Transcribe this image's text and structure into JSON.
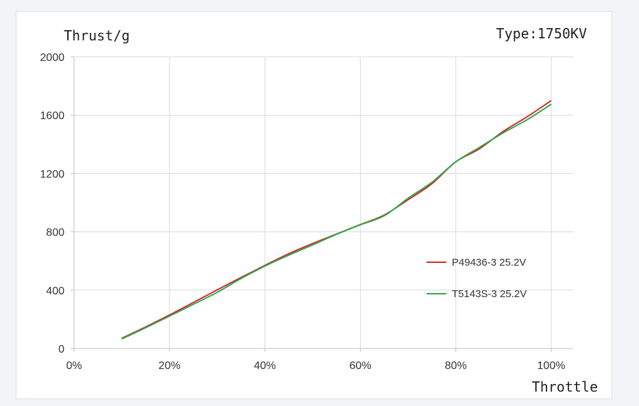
{
  "chart_data": {
    "type": "line",
    "ylabel": "Thrust/g",
    "xlabel": "Throttle",
    "annotation": "Type:1750KV",
    "xlim": [
      0,
      100
    ],
    "ylim": [
      0,
      2000
    ],
    "x_ticks": [
      "0%",
      "20%",
      "40%",
      "60%",
      "80%",
      "100%"
    ],
    "y_ticks": [
      "0",
      "400",
      "800",
      "1200",
      "1600",
      "2000"
    ],
    "grid": true,
    "legend_position": "right",
    "series": [
      {
        "name": "P49436-3 25.2V",
        "color": "#d6282b",
        "x": [
          10,
          15,
          20,
          25,
          30,
          35,
          40,
          45,
          50,
          55,
          60,
          65,
          70,
          75,
          80,
          85,
          90,
          95,
          100
        ],
        "values": [
          70,
          148,
          230,
          315,
          402,
          487,
          570,
          650,
          720,
          785,
          850,
          915,
          1020,
          1130,
          1280,
          1370,
          1490,
          1590,
          1700
        ]
      },
      {
        "name": "T5143S-3 25.2V",
        "color": "#2ea84f",
        "x": [
          10,
          15,
          20,
          25,
          30,
          35,
          40,
          45,
          50,
          55,
          60,
          65,
          70,
          75,
          80,
          85,
          90,
          95,
          100
        ],
        "values": [
          65,
          142,
          222,
          303,
          385,
          480,
          565,
          640,
          710,
          783,
          848,
          910,
          1030,
          1140,
          1280,
          1380,
          1480,
          1570,
          1675
        ]
      }
    ]
  }
}
